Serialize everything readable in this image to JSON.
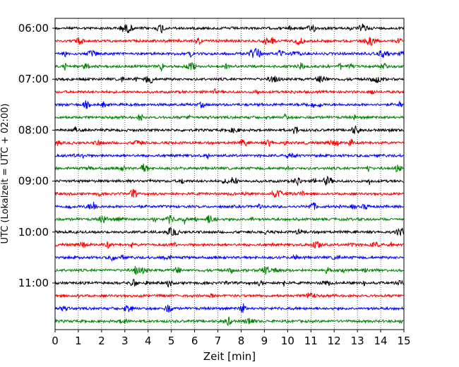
{
  "chart_data": {
    "type": "line",
    "title": "",
    "xlabel": "Zeit  [min]",
    "ylabel": "UTC (Lokalzeit = UTC + 02:00)",
    "xlim": [
      0,
      15
    ],
    "x_ticks": [
      0,
      1,
      2,
      3,
      4,
      5,
      6,
      7,
      8,
      9,
      10,
      11,
      12,
      13,
      14,
      15
    ],
    "y_tick_labels": [
      "06:00",
      "07:00",
      "08:00",
      "09:00",
      "10:00",
      "11:00"
    ],
    "row_interval_min": 15,
    "rows": [
      "06:00",
      "06:15",
      "06:30",
      "06:45",
      "07:00",
      "07:15",
      "07:30",
      "07:45",
      "08:00",
      "08:15",
      "08:30",
      "08:45",
      "09:00",
      "09:15",
      "09:30",
      "09:45",
      "10:00",
      "10:15",
      "10:30",
      "10:45",
      "11:00",
      "11:15",
      "11:30",
      "11:45"
    ],
    "colors": [
      "#000000",
      "#ff0000",
      "#0000ff",
      "#008000"
    ],
    "vertical_grid": "dotted",
    "legend": "none"
  }
}
